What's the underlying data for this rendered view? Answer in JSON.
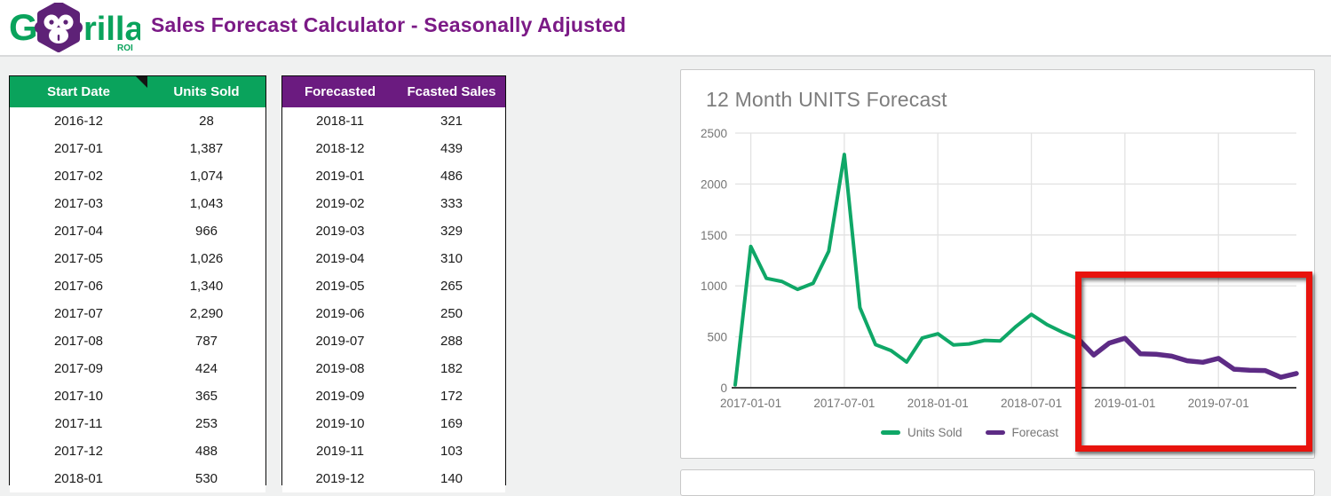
{
  "header": {
    "title": "Sales Forecast Calculator - Seasonally Adjusted",
    "logo": {
      "g": "G",
      "rilla": "rilla",
      "roi": "ROI"
    }
  },
  "colors": {
    "brand_green": "#0aa35c",
    "brand_purple": "#6b1b80",
    "title_purple": "#7b1a86",
    "line_green": "#0fa767",
    "line_purple": "#5d2b85",
    "annotation_red": "#e8130d",
    "chart_text_gray": "#757575"
  },
  "tables": {
    "units": {
      "columns": [
        "Start Date",
        "Units Sold"
      ],
      "rows": [
        [
          "2016-12",
          "28"
        ],
        [
          "2017-01",
          "1,387"
        ],
        [
          "2017-02",
          "1,074"
        ],
        [
          "2017-03",
          "1,043"
        ],
        [
          "2017-04",
          "966"
        ],
        [
          "2017-05",
          "1,026"
        ],
        [
          "2017-06",
          "1,340"
        ],
        [
          "2017-07",
          "2,290"
        ],
        [
          "2017-08",
          "787"
        ],
        [
          "2017-09",
          "424"
        ],
        [
          "2017-10",
          "365"
        ],
        [
          "2017-11",
          "253"
        ],
        [
          "2017-12",
          "488"
        ],
        [
          "2018-01",
          "530"
        ]
      ]
    },
    "forecast": {
      "columns": [
        "Forecasted",
        "Fcasted Sales"
      ],
      "rows": [
        [
          "2018-11",
          "321"
        ],
        [
          "2018-12",
          "439"
        ],
        [
          "2019-01",
          "486"
        ],
        [
          "2019-02",
          "333"
        ],
        [
          "2019-03",
          "329"
        ],
        [
          "2019-04",
          "310"
        ],
        [
          "2019-05",
          "265"
        ],
        [
          "2019-06",
          "250"
        ],
        [
          "2019-07",
          "288"
        ],
        [
          "2019-08",
          "182"
        ],
        [
          "2019-09",
          "172"
        ],
        [
          "2019-10",
          "169"
        ],
        [
          "2019-11",
          "103"
        ],
        [
          "2019-12",
          "140"
        ]
      ]
    }
  },
  "chart_data": {
    "type": "line",
    "title": "12 Month UNITS Forecast",
    "x": [
      "2016-12",
      "2017-01",
      "2017-02",
      "2017-03",
      "2017-04",
      "2017-05",
      "2017-06",
      "2017-07",
      "2017-08",
      "2017-09",
      "2017-10",
      "2017-11",
      "2017-12",
      "2018-01",
      "2018-02",
      "2018-03",
      "2018-04",
      "2018-05",
      "2018-06",
      "2018-07",
      "2018-08",
      "2018-09",
      "2018-10",
      "2018-11",
      "2018-12",
      "2019-01",
      "2019-02",
      "2019-03",
      "2019-04",
      "2019-05",
      "2019-06",
      "2019-07",
      "2019-08",
      "2019-09",
      "2019-10",
      "2019-11",
      "2019-12"
    ],
    "series": [
      {
        "name": "Units Sold",
        "color": "#0fa767",
        "start_index": 0,
        "values": [
          28,
          1387,
          1074,
          1043,
          966,
          1026,
          1340,
          2290,
          787,
          424,
          365,
          253,
          488,
          530,
          420,
          430,
          465,
          460,
          600,
          720,
          620,
          545,
          480
        ]
      },
      {
        "name": "Forecast",
        "color": "#5d2b85",
        "start_index": 23,
        "connects_to_previous": true,
        "values": [
          321,
          439,
          486,
          333,
          329,
          310,
          265,
          250,
          288,
          182,
          172,
          169,
          103,
          140
        ]
      }
    ],
    "ylim": [
      0,
      2500
    ],
    "yticks": [
      0,
      500,
      1000,
      1500,
      2000,
      2500
    ],
    "xtick_labels": [
      "2017-01-01",
      "2017-07-01",
      "2018-01-01",
      "2018-07-01",
      "2019-01-01",
      "2019-07-01"
    ],
    "xtick_indices": [
      1,
      7,
      13,
      19,
      25,
      31
    ],
    "grid": true,
    "legend_position": "bottom-center",
    "annotation": "red rectangle highlighting forecast period (2019) region of the chart"
  }
}
